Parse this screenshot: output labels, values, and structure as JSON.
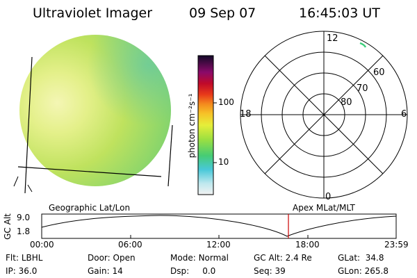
{
  "header": {
    "title": "Ultraviolet Imager",
    "date": "09 Sep 07",
    "time": "16:45:03 UT"
  },
  "colorbar": {
    "unit_label": "photon cm⁻²s⁻¹",
    "ticks": [
      "100",
      "10"
    ]
  },
  "polar_plot": {
    "mlt_labels": {
      "top": "12",
      "left": "18",
      "right": "6",
      "bottom": "0"
    },
    "lat_labels": [
      "60",
      "70",
      "80"
    ]
  },
  "orbit_panel": {
    "y_axis_title": "GC Alt",
    "y_ticks": [
      "9.0",
      "1.8"
    ],
    "left_caption": "Geographic Lat/Lon",
    "right_caption": "Apex  MLat/MLT",
    "x_ticks": [
      "00:00",
      "06:00",
      "12:00",
      "18:00",
      "23:59"
    ]
  },
  "status": {
    "row1": [
      {
        "label": "Flt:",
        "value": "LBHL"
      },
      {
        "label": "Door:",
        "value": "Open"
      },
      {
        "label": "Mode:",
        "value": "Normal"
      },
      {
        "label": "GC Alt:",
        "value": "2.4 Re"
      },
      {
        "label": "GLat:",
        "value": "34.8"
      }
    ],
    "row2": [
      {
        "label": "IP:",
        "value": "36.0"
      },
      {
        "label": "Gain:",
        "value": "14"
      },
      {
        "label": "Dsp:",
        "value": "0.0"
      },
      {
        "label": "Seq:",
        "value": "39"
      },
      {
        "label": "GLon:",
        "value": "265.8"
      }
    ]
  },
  "colors": {
    "disk_main": "#b8e05a",
    "disk_bright": "#eef49a",
    "disk_dim": "#74cf6e",
    "marker": "#cc0000"
  }
}
